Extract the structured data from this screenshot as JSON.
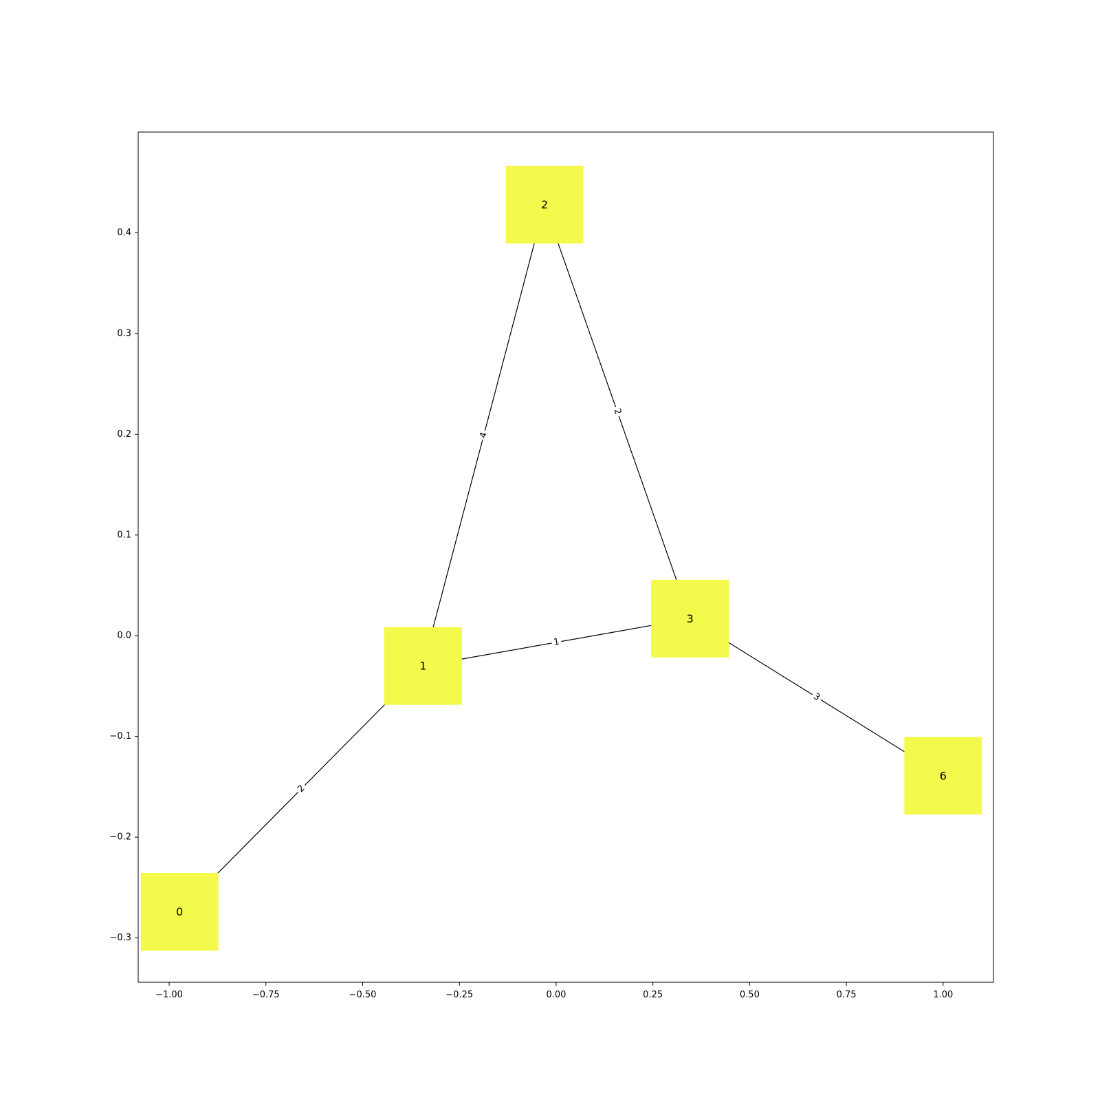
{
  "chart_data": {
    "type": "network-graph",
    "title": "",
    "xlabel": "",
    "ylabel": "",
    "xlim": [
      -1.08,
      1.13
    ],
    "ylim": [
      -0.344,
      0.5
    ],
    "grid": false,
    "x_ticks": [
      {
        "value": -1.0,
        "label": "−1.00"
      },
      {
        "value": -0.75,
        "label": "−0.75"
      },
      {
        "value": -0.5,
        "label": "−0.50"
      },
      {
        "value": -0.25,
        "label": "−0.25"
      },
      {
        "value": 0.0,
        "label": "0.00"
      },
      {
        "value": 0.25,
        "label": "0.25"
      },
      {
        "value": 0.5,
        "label": "0.50"
      },
      {
        "value": 0.75,
        "label": "0.75"
      },
      {
        "value": 1.0,
        "label": "1.00"
      }
    ],
    "y_ticks": [
      {
        "value": -0.3,
        "label": "−0.3"
      },
      {
        "value": -0.2,
        "label": "−0.2"
      },
      {
        "value": -0.1,
        "label": "−0.1"
      },
      {
        "value": 0.0,
        "label": "0.0"
      },
      {
        "value": 0.1,
        "label": "0.1"
      },
      {
        "value": 0.2,
        "label": "0.2"
      },
      {
        "value": 0.3,
        "label": "0.3"
      },
      {
        "value": 0.4,
        "label": "0.4"
      }
    ],
    "node_color": "#f3fa4b",
    "edge_color": "#000000",
    "nodes": [
      {
        "id": "0",
        "label": "0",
        "x": -0.973,
        "y": -0.274
      },
      {
        "id": "1",
        "label": "1",
        "x": -0.344,
        "y": -0.03
      },
      {
        "id": "2",
        "label": "2",
        "x": -0.03,
        "y": 0.428
      },
      {
        "id": "3",
        "label": "3",
        "x": 0.346,
        "y": 0.017
      },
      {
        "id": "6",
        "label": "6",
        "x": 1.0,
        "y": -0.139
      }
    ],
    "edges": [
      {
        "source": "0",
        "target": "1",
        "label": "2"
      },
      {
        "source": "1",
        "target": "2",
        "label": "4"
      },
      {
        "source": "1",
        "target": "3",
        "label": "1"
      },
      {
        "source": "2",
        "target": "3",
        "label": "2"
      },
      {
        "source": "3",
        "target": "6",
        "label": "3"
      }
    ]
  }
}
